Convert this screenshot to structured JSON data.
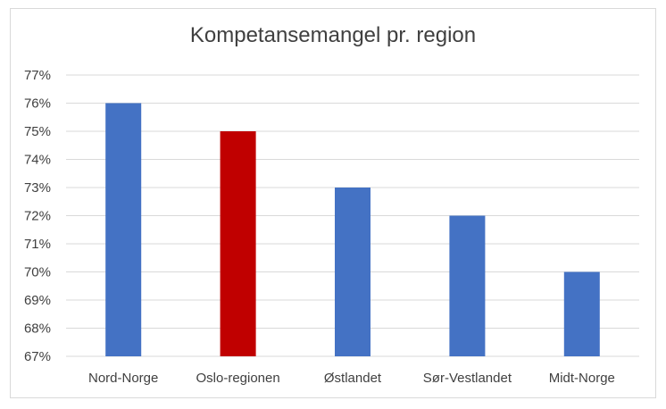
{
  "chart_data": {
    "type": "bar",
    "title": "Kompetansemangel pr. region",
    "xlabel": "",
    "ylabel": "",
    "categories": [
      "Nord-Norge",
      "Oslo-regionen",
      "Østlandet",
      "Sør-Vestlandet",
      "Midt-Norge"
    ],
    "values": [
      76,
      75,
      73,
      72,
      70
    ],
    "value_unit": "%",
    "ylim": [
      67,
      77
    ],
    "ytick_labels": [
      "67%",
      "68%",
      "69%",
      "70%",
      "71%",
      "72%",
      "73%",
      "74%",
      "75%",
      "76%",
      "77%"
    ],
    "bar_colors": [
      "#4472c4",
      "#c00000",
      "#4472c4",
      "#4472c4",
      "#4472c4"
    ],
    "grid": true,
    "legend": "none"
  }
}
